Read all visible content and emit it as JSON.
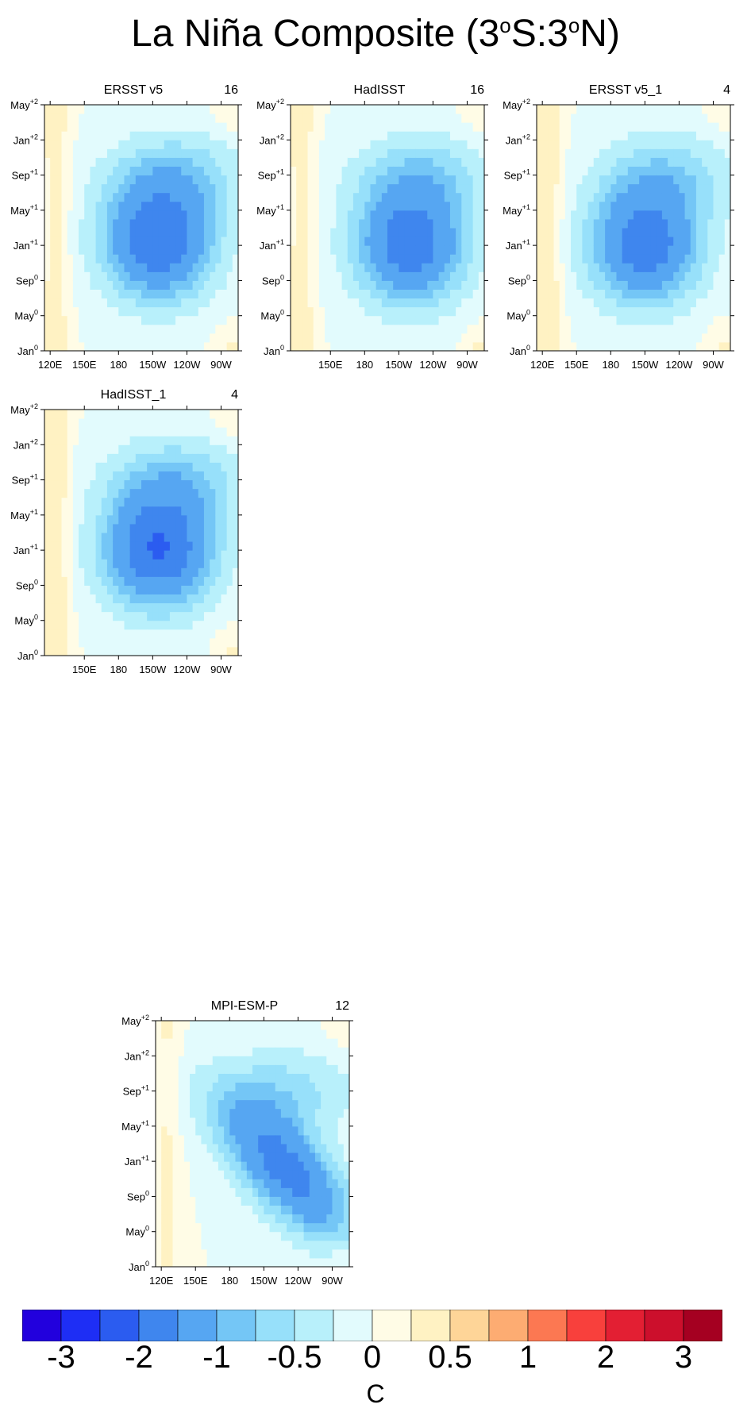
{
  "title": {
    "prefix": "La Niña Composite (3",
    "sup1": "o",
    "mid": "S:3",
    "sup2": "o",
    "suffix": "N)"
  },
  "colors": {
    "levels": [
      -3,
      -2.5,
      -2,
      -1.5,
      -1,
      -0.75,
      -0.5,
      -0.25,
      0,
      0.25,
      0.5,
      0.75,
      1,
      1.5,
      2,
      2.5,
      3
    ],
    "fill": [
      "#2200dd",
      "#1e2ef5",
      "#2b5cf0",
      "#3f86ee",
      "#56a6f2",
      "#74c6f6",
      "#97e0fa",
      "#b8f0fb",
      "#e2fbfd",
      "#fffce6",
      "#fff2c3",
      "#fed598",
      "#fdac72",
      "#fc7852",
      "#f8403c",
      "#e31f33",
      "#cc0f2c",
      "#a50021"
    ]
  },
  "chart_data": [
    {
      "id": "ersst-v5",
      "type": "heatmap",
      "title": "ERSST v5",
      "count": "16",
      "x_ticks": [
        "120E",
        "150E",
        "180",
        "150W",
        "120W",
        "90W"
      ],
      "y_ticks": [
        {
          "base": "Jan",
          "sup": "0"
        },
        {
          "base": "May",
          "sup": "0"
        },
        {
          "base": "Sep",
          "sup": "0"
        },
        {
          "base": "Jan",
          "sup": "+1"
        },
        {
          "base": "May",
          "sup": "+1"
        },
        {
          "base": "Sep",
          "sup": "+1"
        },
        {
          "base": "Jan",
          "sup": "+2"
        },
        {
          "base": "May",
          "sup": "+2"
        }
      ],
      "x_range_deg": [
        115,
        285
      ],
      "month_range": [
        0,
        28
      ],
      "anomaly_center": {
        "lon_deg": 215,
        "month": 12.5
      },
      "peak_anomaly": -1.9,
      "west_warm": 0.4
    },
    {
      "id": "hadisst",
      "type": "heatmap",
      "title": "HadISST",
      "count": "16",
      "x_ticks": [
        "150E",
        "180",
        "150W",
        "120W",
        "90W"
      ],
      "y_ticks": [
        {
          "base": "Jan",
          "sup": "0"
        },
        {
          "base": "May",
          "sup": "0"
        },
        {
          "base": "Sep",
          "sup": "0"
        },
        {
          "base": "Jan",
          "sup": "+1"
        },
        {
          "base": "May",
          "sup": "+1"
        },
        {
          "base": "Sep",
          "sup": "+1"
        },
        {
          "base": "Jan",
          "sup": "+2"
        },
        {
          "base": "May",
          "sup": "+2"
        }
      ],
      "x_range_deg": [
        115,
        285
      ],
      "month_range": [
        0,
        28
      ],
      "anomaly_center": {
        "lon_deg": 220,
        "month": 12
      },
      "peak_anomaly": -1.8,
      "west_warm": 0.4
    },
    {
      "id": "ersst-v5-1",
      "type": "heatmap",
      "title": "ERSST v5_1",
      "count": "4",
      "x_ticks": [
        "120E",
        "150E",
        "180",
        "150W",
        "120W",
        "90W"
      ],
      "y_ticks": [
        {
          "base": "Jan",
          "sup": "0"
        },
        {
          "base": "May",
          "sup": "0"
        },
        {
          "base": "Sep",
          "sup": "0"
        },
        {
          "base": "Jan",
          "sup": "+1"
        },
        {
          "base": "May",
          "sup": "+1"
        },
        {
          "base": "Sep",
          "sup": "+1"
        },
        {
          "base": "Jan",
          "sup": "+2"
        },
        {
          "base": "May",
          "sup": "+2"
        }
      ],
      "x_range_deg": [
        115,
        285
      ],
      "month_range": [
        0,
        28
      ],
      "anomaly_center": {
        "lon_deg": 210,
        "month": 12
      },
      "peak_anomaly": -1.8,
      "west_warm": 0.5
    },
    {
      "id": "hadisst-1",
      "type": "heatmap",
      "title": "HadISST_1",
      "count": "4",
      "x_ticks": [
        "150E",
        "180",
        "150W",
        "120W",
        "90W"
      ],
      "y_ticks": [
        {
          "base": "Jan",
          "sup": "0"
        },
        {
          "base": "May",
          "sup": "0"
        },
        {
          "base": "Sep",
          "sup": "0"
        },
        {
          "base": "Jan",
          "sup": "+1"
        },
        {
          "base": "May",
          "sup": "+1"
        },
        {
          "base": "Sep",
          "sup": "+1"
        },
        {
          "base": "Jan",
          "sup": "+2"
        },
        {
          "base": "May",
          "sup": "+2"
        }
      ],
      "x_range_deg": [
        115,
        285
      ],
      "month_range": [
        0,
        28
      ],
      "anomaly_center": {
        "lon_deg": 215,
        "month": 12
      },
      "peak_anomaly": -2.0,
      "west_warm": 0.5
    },
    {
      "id": "mpi-esm-p",
      "type": "heatmap",
      "title": "MPI-ESM-P",
      "count": "12",
      "x_ticks": [
        "120E",
        "150E",
        "180",
        "150W",
        "120W",
        "90W"
      ],
      "y_ticks": [
        {
          "base": "Jan",
          "sup": "0"
        },
        {
          "base": "May",
          "sup": "0"
        },
        {
          "base": "Sep",
          "sup": "0"
        },
        {
          "base": "Jan",
          "sup": "+1"
        },
        {
          "base": "May",
          "sup": "+1"
        },
        {
          "base": "Sep",
          "sup": "+1"
        },
        {
          "base": "Jan",
          "sup": "+2"
        },
        {
          "base": "May",
          "sup": "+2"
        }
      ],
      "x_range_deg": [
        115,
        285
      ],
      "month_range": [
        0,
        28
      ],
      "anomaly_center": {
        "lon_deg": 230,
        "month": 11
      },
      "peak_anomaly": -1.7,
      "west_warm": 0.3,
      "tilted": true
    }
  ],
  "colorbar": {
    "labels": [
      "-3",
      "-2",
      "-1",
      "-0.5",
      "0",
      "0.5",
      "1",
      "2",
      "3"
    ],
    "units": "C"
  }
}
